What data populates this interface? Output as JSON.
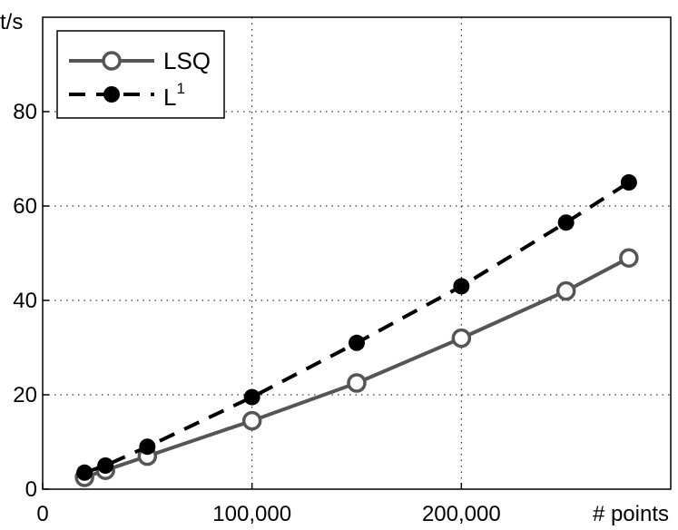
{
  "chart_data": {
    "type": "line",
    "title": "",
    "xlabel": "# points",
    "ylabel": "t/s",
    "xlim": [
      0,
      300000
    ],
    "ylim": [
      0,
      100
    ],
    "x_ticks": [
      0,
      100000,
      200000
    ],
    "x_tick_labels": [
      "0",
      "100,000",
      "200,000"
    ],
    "y_ticks": [
      0,
      20,
      40,
      60,
      80
    ],
    "y_tick_labels": [
      "0",
      "20",
      "40",
      "60",
      "80"
    ],
    "grid": true,
    "legend": "top-left",
    "series": [
      {
        "name": "LSQ",
        "color": "#555555",
        "marker": "open-circle",
        "line_style": "solid",
        "x": [
          20000,
          30000,
          50000,
          100000,
          150000,
          200000,
          250000,
          280000
        ],
        "y": [
          2.5,
          4,
          7,
          14.5,
          22.5,
          32,
          42,
          49
        ]
      },
      {
        "name": "L",
        "name_superscript": "1",
        "color": "#000000",
        "marker": "filled-circle",
        "line_style": "dashed",
        "x": [
          20000,
          30000,
          50000,
          100000,
          150000,
          200000,
          250000,
          280000
        ],
        "y": [
          3.5,
          5,
          9,
          19.5,
          31,
          43,
          56.5,
          65
        ]
      }
    ]
  }
}
